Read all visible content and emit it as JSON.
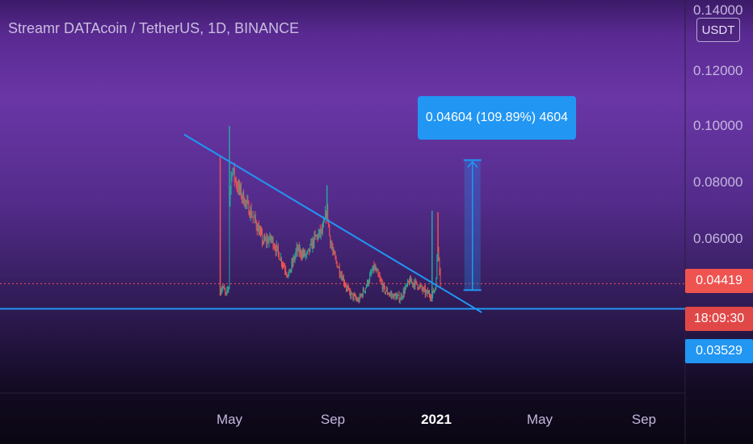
{
  "header": {
    "title": "Streamr DATAcoin / TetherUS, 1D, BINANCE",
    "currency_button": "USDT"
  },
  "price_axis": {
    "tick_labels": [
      "0.14000",
      "0.12000",
      "0.10000",
      "0.08000",
      "0.06000"
    ]
  },
  "time_axis": {
    "tick_labels": [
      "May",
      "Sep",
      "2021",
      "May",
      "Sep"
    ]
  },
  "price_tags": {
    "last_price": "0.04419",
    "countdown": "18:09:30",
    "support": "0.03529"
  },
  "measure_tool": {
    "label": "0.04604 (109.89%) 4604"
  },
  "colors": {
    "up": "#26a69a",
    "down": "#ef5350",
    "drawing": "#2196f3",
    "last_price_line": "#ef5350"
  },
  "chart_data": {
    "type": "candlestick",
    "title": "Streamr DATAcoin / TetherUS, 1D, BINANCE",
    "xlabel": "",
    "ylabel": "",
    "ylim": [
      0.018,
      0.14
    ],
    "x_ticks": [
      "May",
      "Sep",
      "2021",
      "May",
      "Sep"
    ],
    "y_ticks": [
      0.06,
      0.08,
      0.1,
      0.12,
      0.14
    ],
    "grid": false,
    "price_path": {
      "x": [
        "2020-04-20",
        "2020-04-23",
        "2020-04-27",
        "2020-04-30",
        "2020-05-01",
        "2020-05-04",
        "2020-05-10",
        "2020-05-20",
        "2020-06-01",
        "2020-06-10",
        "2020-06-20",
        "2020-07-01",
        "2020-07-10",
        "2020-07-20",
        "2020-08-01",
        "2020-08-10",
        "2020-08-20",
        "2020-08-25",
        "2020-08-28",
        "2020-09-01",
        "2020-09-10",
        "2020-09-20",
        "2020-10-01",
        "2020-10-10",
        "2020-10-20",
        "2020-11-01",
        "2020-11-10",
        "2020-11-20",
        "2020-12-01",
        "2020-12-10",
        "2020-12-20",
        "2020-12-28",
        "2021-01-01",
        "2021-01-04",
        "2021-01-07"
      ],
      "close": [
        0.042,
        0.043,
        0.04,
        0.043,
        0.075,
        0.085,
        0.079,
        0.073,
        0.066,
        0.059,
        0.06,
        0.053,
        0.047,
        0.056,
        0.054,
        0.06,
        0.063,
        0.071,
        0.061,
        0.055,
        0.048,
        0.041,
        0.038,
        0.043,
        0.05,
        0.042,
        0.04,
        0.039,
        0.045,
        0.044,
        0.041,
        0.04,
        0.043,
        0.058,
        0.0442
      ]
    },
    "spikes": [
      {
        "date": "2020-04-20",
        "high": 0.089,
        "color": "down"
      },
      {
        "date": "2020-05-01",
        "high": 0.1,
        "color": "up"
      },
      {
        "date": "2020-08-25",
        "high": 0.079,
        "color": "up"
      },
      {
        "date": "2020-12-28",
        "high": 0.07,
        "color": "up"
      },
      {
        "date": "2021-01-04",
        "high": 0.0695,
        "color": "down"
      }
    ],
    "last_price": 0.04419,
    "support_level": 0.03529,
    "trendline": {
      "start": [
        "2020-03-08",
        0.097
      ],
      "end": [
        "2021-02-25",
        0.034
      ]
    },
    "measure": {
      "date": "2021-02-14",
      "from": 0.0419,
      "to": 0.0879,
      "change": 0.04604,
      "change_pct": 109.89,
      "ticks": 4604
    }
  }
}
